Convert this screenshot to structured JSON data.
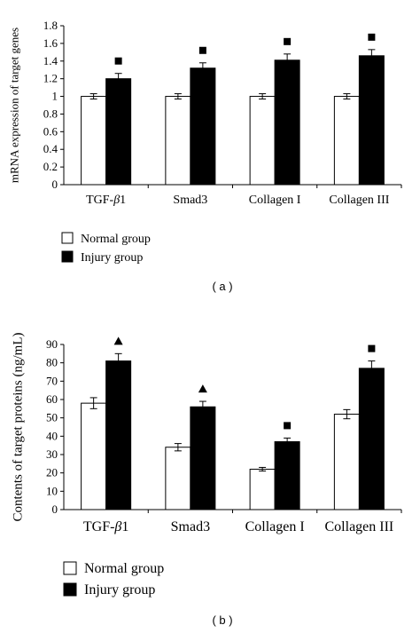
{
  "chart_data": [
    {
      "type": "bar",
      "panel_label": "( a )",
      "ylabel": "mRNA expression of target genes",
      "categories": [
        "TGF-β1",
        "Smad3",
        "Collagen I",
        "Collagen III"
      ],
      "ylim": [
        0,
        1.8
      ],
      "yticks": [
        "0",
        "0.2",
        "0.4",
        "0.6",
        "0.8",
        "1",
        "1.2",
        "1.4",
        "1.6",
        "1.8"
      ],
      "series": [
        {
          "name": "Normal group",
          "color": "#ffffff",
          "values": [
            1.0,
            1.0,
            1.0,
            1.0
          ],
          "errors": [
            0.03,
            0.03,
            0.03,
            0.03
          ]
        },
        {
          "name": "Injury group",
          "color": "#000000",
          "values": [
            1.2,
            1.32,
            1.41,
            1.46
          ],
          "errors": [
            0.06,
            0.06,
            0.07,
            0.07
          ]
        }
      ],
      "markers": [
        "■",
        "■",
        "■",
        "■"
      ],
      "legend_position": "bottom-left"
    },
    {
      "type": "bar",
      "panel_label": "( b )",
      "ylabel": "Contents of target proteins (ng/mL)",
      "categories": [
        "TGF-β1",
        "Smad3",
        "Collagen I",
        "Collagen III"
      ],
      "ylim": [
        0,
        90
      ],
      "yticks": [
        "0",
        "10",
        "20",
        "30",
        "40",
        "50",
        "60",
        "70",
        "80",
        "90"
      ],
      "series": [
        {
          "name": "Normal group",
          "color": "#ffffff",
          "values": [
            58,
            34,
            22,
            52
          ],
          "errors": [
            3,
            2,
            1,
            2.5
          ]
        },
        {
          "name": "Injury group",
          "color": "#000000",
          "values": [
            81,
            56,
            37,
            77
          ],
          "errors": [
            4,
            3,
            2,
            4
          ]
        }
      ],
      "markers": [
        "▲",
        "▲",
        "■",
        "■"
      ],
      "legend_position": "bottom-left"
    }
  ]
}
